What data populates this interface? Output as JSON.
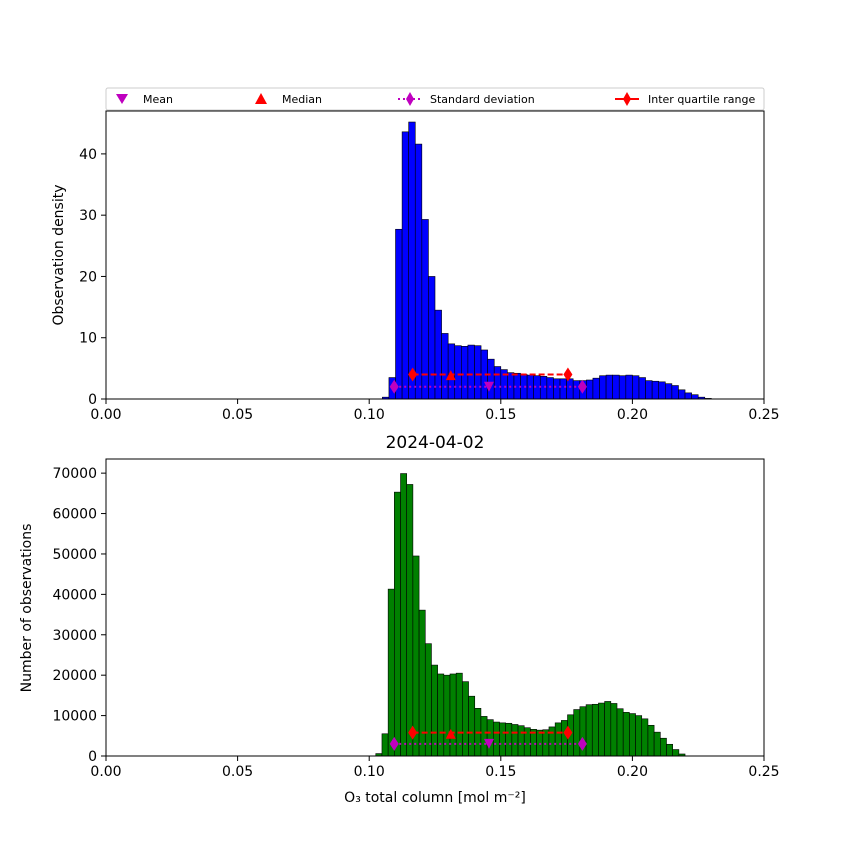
{
  "chart_data": [
    {
      "type": "bar",
      "panel": "top",
      "title": "",
      "xlabel": "",
      "ylabel": "Observation density",
      "xlim": [
        0.0,
        0.25
      ],
      "ylim": [
        0,
        47
      ],
      "xticks": [
        "0.00",
        "0.05",
        "0.10",
        "0.15",
        "0.20",
        "0.25"
      ],
      "yticks": [
        "0",
        "10",
        "20",
        "30",
        "40"
      ],
      "ytick_values": [
        0,
        10,
        20,
        30,
        40
      ],
      "bar_color": "#0000ff",
      "bin_start": 0.105,
      "bin_width": 0.0025,
      "values": [
        0.3,
        3.5,
        27.7,
        43.6,
        45.2,
        41.6,
        29.3,
        20.0,
        14.5,
        10.7,
        9.0,
        8.7,
        8.6,
        8.8,
        8.7,
        8.0,
        6.5,
        5.3,
        4.8,
        4.3,
        4.2,
        4.0,
        3.9,
        3.8,
        3.7,
        3.5,
        3.3,
        3.3,
        3.3,
        3.0,
        3.0,
        3.1,
        3.4,
        3.8,
        3.9,
        3.9,
        3.8,
        3.9,
        3.8,
        3.5,
        3.0,
        2.9,
        2.8,
        2.5,
        2.2,
        1.5,
        1.0,
        0.7,
        0.3,
        0.1
      ],
      "annotations": {
        "mean": {
          "x": 0.1455,
          "y": 2.0
        },
        "median": {
          "x": 0.131,
          "y": 3.9
        },
        "std": {
          "x": [
            0.1095,
            0.181
          ],
          "y": 2.0
        },
        "iqr": {
          "x": [
            0.1165,
            0.1755
          ],
          "y": 4.0
        }
      }
    },
    {
      "type": "bar",
      "panel": "bottom",
      "title": "2024-04-02",
      "xlabel": "O₃ total column [mol m⁻²]",
      "ylabel": "Number of observations",
      "xlim": [
        0.0,
        0.25
      ],
      "ylim": [
        0,
        73500
      ],
      "xticks": [
        "0.00",
        "0.05",
        "0.10",
        "0.15",
        "0.20",
        "0.25"
      ],
      "yticks": [
        "0",
        "10000",
        "20000",
        "30000",
        "40000",
        "50000",
        "60000",
        "70000"
      ],
      "ytick_values": [
        0,
        10000,
        20000,
        30000,
        40000,
        50000,
        60000,
        70000
      ],
      "bar_color": "#008000",
      "bin_start": 0.1025,
      "bin_width": 0.00235,
      "values": [
        600,
        5500,
        41300,
        65300,
        69900,
        67200,
        49500,
        36100,
        27800,
        22500,
        20300,
        20000,
        20300,
        20500,
        18400,
        14800,
        11800,
        9800,
        9000,
        8400,
        8200,
        8100,
        7800,
        7500,
        7000,
        6600,
        6400,
        6500,
        7200,
        8200,
        8800,
        10200,
        11500,
        12200,
        12700,
        12800,
        13100,
        13500,
        13000,
        11700,
        10800,
        10500,
        10000,
        9200,
        7600,
        5900,
        4400,
        2900,
        1600,
        500
      ],
      "annotations": {
        "mean": {
          "x": 0.1455,
          "y": 3000
        },
        "median": {
          "x": 0.131,
          "y": 5500
        },
        "std": {
          "x": [
            0.1095,
            0.181
          ],
          "y": 3000
        },
        "iqr": {
          "x": [
            0.1165,
            0.1755
          ],
          "y": 5800
        }
      }
    }
  ],
  "legend": {
    "placement": "top",
    "items": [
      {
        "label": "Mean",
        "marker": "triangle-down",
        "color": "#bf00bf"
      },
      {
        "label": "Median",
        "marker": "triangle-up",
        "color": "#ff0000"
      },
      {
        "label": "Standard deviation",
        "marker": "diamond-dotted-line",
        "color": "#bf00bf"
      },
      {
        "label": "Inter quartile range",
        "marker": "diamond-solid-line",
        "color": "#ff0000"
      }
    ]
  }
}
